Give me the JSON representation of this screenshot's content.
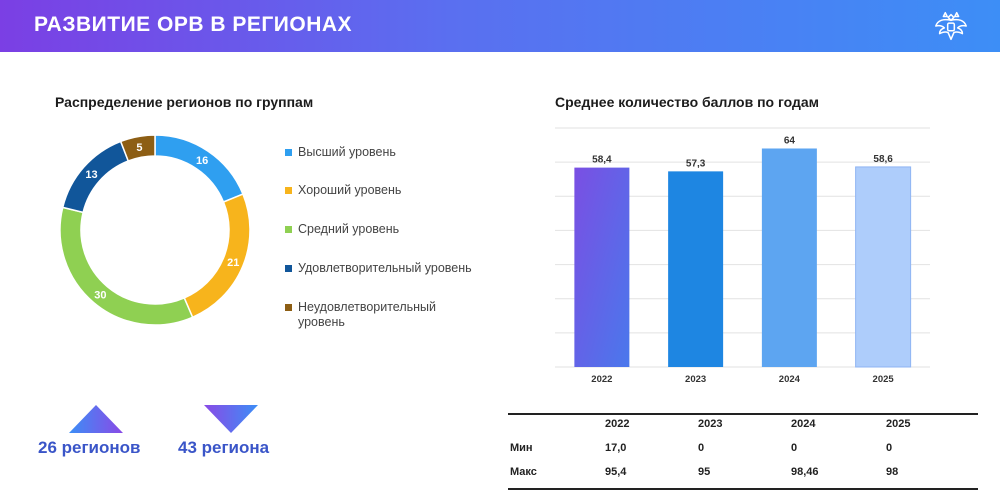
{
  "header": {
    "title": "РАЗВИТИЕ ОРВ В РЕГИОНАХ"
  },
  "colors": {
    "header_start": "#7b3fe4",
    "header_end": "#3d8ef6",
    "accent_text": "#3a55c8"
  },
  "icons": {
    "emblem": "eagle-emblem-icon"
  },
  "donut": {
    "title": "Распределение регионов по группам"
  },
  "bars": {
    "title": "Среднее количество баллов по годам"
  },
  "chart_data": [
    {
      "type": "pie",
      "style": "donut",
      "title": "Распределение регионов по группам",
      "legend_position": "right",
      "categories": [
        "Высший уровень",
        "Хороший уровень",
        "Средний уровень",
        "Удовлетворительный уровень",
        "Неудовлетворительный уровень"
      ],
      "values": [
        16,
        21,
        30,
        13,
        5
      ],
      "colors": [
        "#2f9ff0",
        "#f7b41c",
        "#8fd052",
        "#11569a",
        "#8d5e14"
      ]
    },
    {
      "type": "bar",
      "title": "Среднее количество баллов по годам",
      "categories": [
        "2022",
        "2023",
        "2024",
        "2025"
      ],
      "values": [
        58.4,
        57.3,
        64,
        58.6
      ],
      "value_labels": [
        "58,4",
        "57,3",
        "64",
        "58,6"
      ],
      "ylim": [
        0,
        70
      ],
      "grid": true,
      "colors": [
        "#6a5ae0",
        "#1e86e2",
        "#5da5f1",
        "#aecdfb"
      ]
    }
  ],
  "summary": {
    "up_label": "26 регионов",
    "down_label": "43 региона"
  },
  "table": {
    "headers": [
      "",
      "2022",
      "2023",
      "2024",
      "2025"
    ],
    "rows": [
      [
        "Мин",
        "17,0",
        "0",
        "0",
        "0"
      ],
      [
        "Макс",
        "95,4",
        "95",
        "98,46",
        "98"
      ]
    ]
  }
}
